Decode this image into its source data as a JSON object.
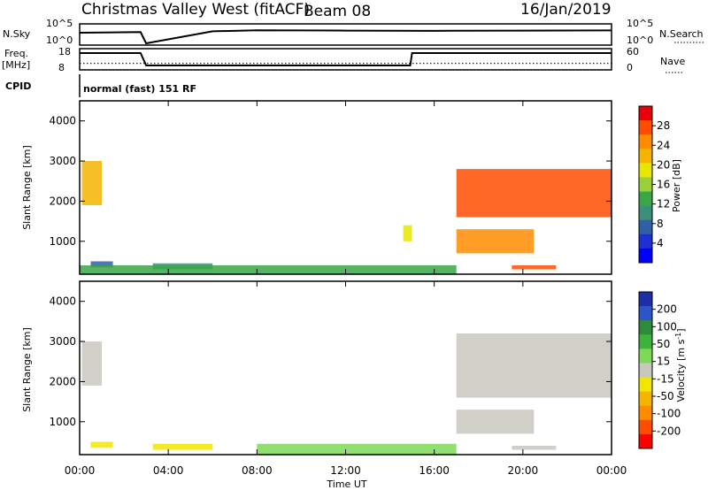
{
  "header": {
    "station": "Christmas Valley West (fitACF)",
    "beam": "Beam 08",
    "date": "16/Jan/2019"
  },
  "strip": {
    "nsky_label": "N.Sky",
    "nsky_ticks": [
      "10^5",
      "10^0"
    ],
    "nsearch_label": "N.Search",
    "nsearch_ticks": [
      "10^5",
      "10^0"
    ],
    "freq_label": "Freq.",
    "freq_unit": "[MHz]",
    "freq_ticks": [
      "18",
      "8"
    ],
    "nave_label": "Nave",
    "nave_ticks": [
      "60",
      "0"
    ],
    "cpid_label": "CPID",
    "cpid_text": "normal (fast) 151 RF"
  },
  "panels": {
    "ylabel": "Slant Range [km]",
    "yticks": [
      "4000",
      "3000",
      "2000",
      "1000"
    ],
    "xlabel": "Time UT",
    "xticks": [
      "00:00",
      "04:00",
      "08:00",
      "12:00",
      "16:00",
      "20:00",
      "00:00"
    ]
  },
  "colorbars": {
    "power_label": "Power [dB]",
    "power_ticks": [
      "28",
      "24",
      "20",
      "16",
      "12",
      "8",
      "4"
    ],
    "power_colors": [
      "#e8000b",
      "#ff4d00",
      "#ff8c00",
      "#f5b400",
      "#e6e600",
      "#9ad13a",
      "#3aa64a",
      "#3c8f7a",
      "#2e5fa8",
      "#1f2fd6",
      "#0000ff"
    ],
    "velocity_label": "Velocity [m s",
    "velocity_exp": "-1",
    "velocity_ticks": [
      "200",
      "100",
      "50",
      "15",
      "-15",
      "-50",
      "-100",
      "-200"
    ],
    "velocity_colors": [
      "#1c2fa8",
      "#2b55c8",
      "#2c8c3c",
      "#3cb43c",
      "#7ed957",
      "#c8c8c0",
      "#f2e600",
      "#f5b400",
      "#ff8c00",
      "#ff4d00",
      "#ff0000"
    ]
  },
  "chart_data": [
    {
      "type": "line",
      "name": "N.Sky",
      "x": [
        "00:00",
        "02:45",
        "03:00",
        "06:00",
        "08:00",
        "12:00",
        "16:00",
        "20:00",
        "24:00"
      ],
      "y": [
        1000,
        1500,
        1,
        2500,
        5000,
        4000,
        3500,
        4000,
        4500
      ],
      "yscale": "log",
      "ylim": [
        1,
        100000
      ]
    },
    {
      "type": "line",
      "name": "Freq.",
      "x": [
        "00:00",
        "02:45",
        "03:00",
        "14:55",
        "15:00",
        "24:00"
      ],
      "y": [
        16.5,
        16.5,
        9.5,
        9.5,
        16.5,
        16.5
      ],
      "ylim": [
        8,
        18
      ]
    },
    {
      "type": "line",
      "name": "Nave",
      "x": [
        "00:00",
        "24:00"
      ],
      "y": [
        16,
        16
      ],
      "ylim": [
        0,
        60
      ]
    },
    {
      "type": "heatmap",
      "name": "Power",
      "xlabel": "Time UT",
      "ylabel": "Slant Range [km]",
      "xlim": [
        "00:00",
        "24:00"
      ],
      "ylim": [
        180,
        4500
      ],
      "colorbar": {
        "label": "Power [dB]",
        "range": [
          0,
          32
        ]
      },
      "regions": [
        {
          "t": [
            0.1,
            1.0
          ],
          "range_km": [
            1900,
            3000
          ],
          "value_db": 22
        },
        {
          "t": [
            0.5,
            1.5
          ],
          "range_km": [
            350,
            500
          ],
          "value_db": 8
        },
        {
          "t": [
            3.3,
            6.0
          ],
          "range_km": [
            300,
            450
          ],
          "value_db": 10
        },
        {
          "t": [
            0.0,
            17.0
          ],
          "range_km": [
            180,
            400
          ],
          "value_db": 14
        },
        {
          "t": [
            14.6,
            15.0
          ],
          "range_km": [
            1000,
            1400
          ],
          "value_db": 18
        },
        {
          "t": [
            17.0,
            24.0
          ],
          "range_km": [
            1600,
            2800
          ],
          "value_db": 27
        },
        {
          "t": [
            17.0,
            20.5
          ],
          "range_km": [
            700,
            1300
          ],
          "value_db": 25
        },
        {
          "t": [
            19.5,
            21.5
          ],
          "range_km": [
            300,
            400
          ],
          "value_db": 29
        }
      ]
    },
    {
      "type": "heatmap",
      "name": "Velocity",
      "xlabel": "Time UT",
      "ylabel": "Slant Range [km]",
      "xlim": [
        "00:00",
        "24:00"
      ],
      "ylim": [
        180,
        4500
      ],
      "colorbar": {
        "label": "Velocity [m s-1]",
        "range": [
          -200,
          200
        ]
      },
      "regions": [
        {
          "t": [
            0.1,
            1.0
          ],
          "range_km": [
            1900,
            3000
          ],
          "value_ms": 0
        },
        {
          "t": [
            0.5,
            1.5
          ],
          "range_km": [
            350,
            500
          ],
          "value_ms": -40
        },
        {
          "t": [
            3.3,
            6.0
          ],
          "range_km": [
            300,
            450
          ],
          "value_ms": -20
        },
        {
          "t": [
            8.0,
            17.0
          ],
          "range_km": [
            180,
            450
          ],
          "value_ms": 25
        },
        {
          "t": [
            17.0,
            24.0
          ],
          "range_km": [
            1600,
            3200
          ],
          "value_ms": 0
        },
        {
          "t": [
            17.0,
            20.5
          ],
          "range_km": [
            700,
            1300
          ],
          "value_ms": 0
        },
        {
          "t": [
            19.5,
            21.5
          ],
          "range_km": [
            300,
            400
          ],
          "value_ms": 0
        }
      ]
    }
  ]
}
